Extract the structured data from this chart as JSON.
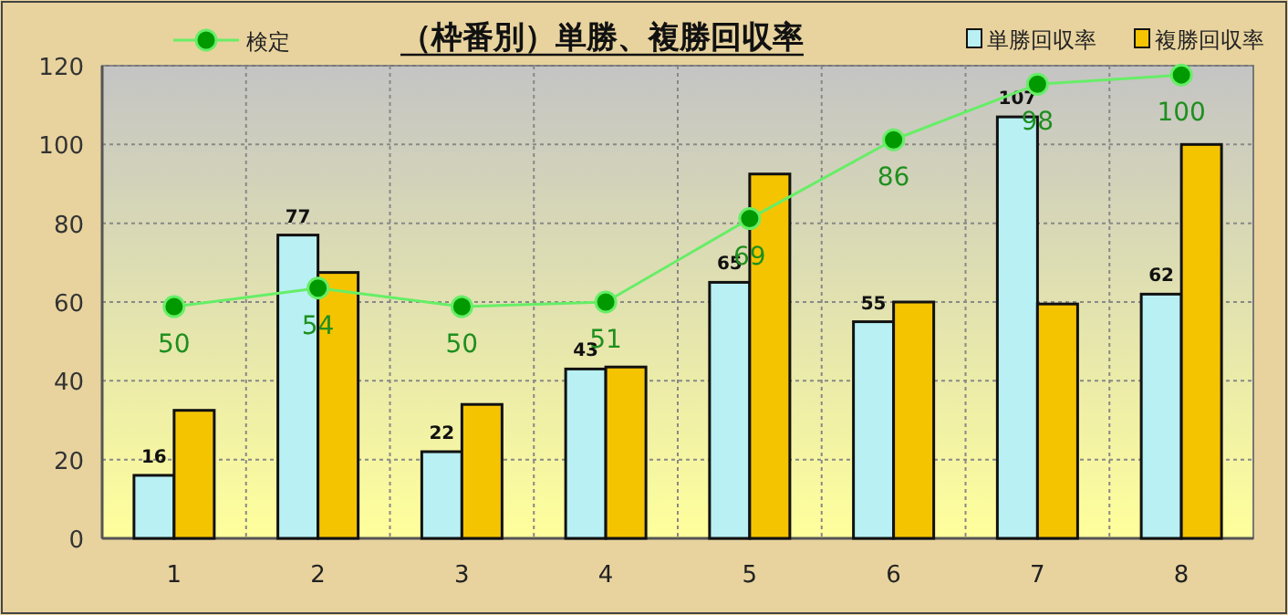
{
  "chart_data": {
    "type": "bar",
    "title": "（枠番別）単勝、複勝回収率",
    "categories": [
      "1",
      "2",
      "3",
      "4",
      "5",
      "6",
      "7",
      "8"
    ],
    "series": [
      {
        "name": "単勝回収率",
        "color": "#b8f0f4",
        "values": [
          16,
          77,
          22,
          43,
          65,
          55,
          107,
          62
        ],
        "value_labels": [
          "16",
          "77",
          "22",
          "43",
          "65",
          "55",
          "107",
          "62"
        ]
      },
      {
        "name": "複勝回収率",
        "color": "#f5c400",
        "values": [
          32.5,
          67.5,
          34,
          43.5,
          92.5,
          60,
          59.5,
          100
        ]
      },
      {
        "name": "検定",
        "type": "line",
        "axis": "y2",
        "color": "#66ee66",
        "values": [
          50,
          54,
          50,
          51,
          69,
          86,
          98,
          100
        ],
        "value_labels": [
          "50",
          "54",
          "50",
          "51",
          "69",
          "86",
          "98",
          "100"
        ]
      }
    ],
    "ylim": [
      0,
      120
    ],
    "yticks": [
      0,
      20,
      40,
      60,
      80,
      100,
      120
    ],
    "y2lim": [
      0,
      102
    ],
    "tick_labels": "y",
    "grid": true,
    "legend": "top",
    "marker": "circle"
  }
}
